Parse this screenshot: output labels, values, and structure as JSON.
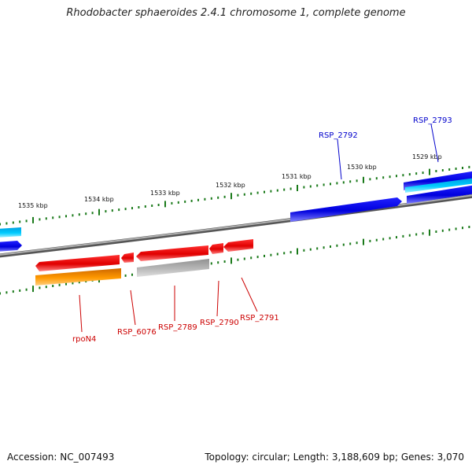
{
  "title": "Rhodobacter sphaeroides 2.4.1 chromosome 1, complete genome",
  "footer": {
    "accession": "Accession: NC_007493",
    "summary": "Topology: circular; Length: 3,188,609 bp; Genes: 3,070"
  },
  "colors": {
    "backbone": "#808080",
    "tick": "#1a7a1a",
    "gene_red": "#e00000",
    "gene_orange": "#ff9900",
    "gene_gray": "#b0b0b0",
    "gene_blue": "#0000dd",
    "gene_cyan": "#00ccff",
    "label_red": "#cc0000",
    "label_blue": "#0000cc"
  },
  "scale_labels": [
    {
      "id": "1535",
      "text": "1535 kbp"
    },
    {
      "id": "1534",
      "text": "1534 kbp"
    },
    {
      "id": "1533",
      "text": "1533 kbp"
    },
    {
      "id": "1532",
      "text": "1532 kbp"
    },
    {
      "id": "1531",
      "text": "1531 kbp"
    },
    {
      "id": "1530",
      "text": "1530 kbp"
    },
    {
      "id": "1529",
      "text": "1529 kbp"
    }
  ],
  "gene_labels": [
    {
      "id": "rpoN4",
      "text": "rpoN4",
      "color": "red"
    },
    {
      "id": "RSP_6076",
      "text": "RSP_6076",
      "color": "red"
    },
    {
      "id": "RSP_2789",
      "text": "RSP_2789",
      "color": "red"
    },
    {
      "id": "RSP_2790",
      "text": "RSP_2790",
      "color": "red"
    },
    {
      "id": "RSP_2791",
      "text": "RSP_2791",
      "color": "red"
    },
    {
      "id": "RSP_2792",
      "text": "RSP_2792",
      "color": "blue"
    },
    {
      "id": "RSP_2793",
      "text": "RSP_2793",
      "color": "blue"
    }
  ]
}
